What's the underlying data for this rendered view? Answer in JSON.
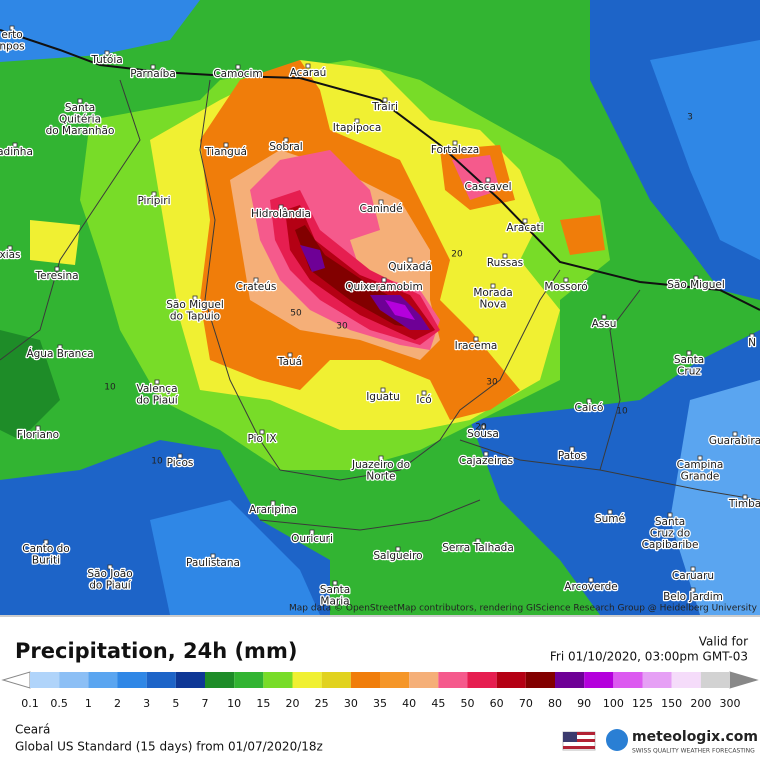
{
  "header": {
    "title": "Precipitation, 24h (mm)",
    "valid_label": "Valid for",
    "valid_time": "Fri 01/10/2020, 03:00pm GMT-03"
  },
  "map": {
    "cities": [
      [
        "erto",
        "npos"
      ],
      [
        "Tutóia"
      ],
      [
        "Parnaíba"
      ],
      [
        "Camocim"
      ],
      [
        "Acaraú"
      ],
      [
        "Santa",
        "Quitéria",
        "do Maranhão"
      ],
      [
        "adinha"
      ],
      [
        "Trairi"
      ],
      [
        "Itapipoca"
      ],
      [
        "Fortaleza"
      ],
      [
        "Tianguá"
      ],
      [
        "Sobral"
      ],
      [
        "Cascavel"
      ],
      [
        "Piripiri"
      ],
      [
        "Hidrolândia"
      ],
      [
        "Canindé"
      ],
      [
        "Aracati"
      ],
      [
        "xias"
      ],
      [
        "Teresina"
      ],
      [
        "Quixadá"
      ],
      [
        "Russas"
      ],
      [
        "Crateús"
      ],
      [
        "Quixeramobim"
      ],
      [
        "Mossoró"
      ],
      [
        "São Miguel"
      ],
      [
        "São Miguel",
        "do Tapuio"
      ],
      [
        "Morada",
        "Nova"
      ],
      [
        "Assu"
      ],
      [
        "Água Branca"
      ],
      [
        "Iracema"
      ],
      [
        "Tauá"
      ],
      [
        "Santa",
        "Cruz"
      ],
      [
        "Valença",
        "do Piauí"
      ],
      [
        "Iguatu"
      ],
      [
        "Icó"
      ],
      [
        "Caicó"
      ],
      [
        "Floriano"
      ],
      [
        "Pio IX"
      ],
      [
        "Sousa"
      ],
      [
        "Guarabira"
      ],
      [
        "Picos"
      ],
      [
        "Cajazeiras"
      ],
      [
        "Patos"
      ],
      [
        "Juazeiro do",
        "Norte"
      ],
      [
        "Campina",
        "Grande"
      ],
      [
        "Timba"
      ],
      [
        "Araripina"
      ],
      [
        "Sumé"
      ],
      [
        "Santa",
        "Cruz do",
        "Capibaribe"
      ],
      [
        "Ouricuri"
      ],
      [
        "Canto do",
        "Buriti"
      ],
      [
        "São João",
        "do Piauí"
      ],
      [
        "Paulistana"
      ],
      [
        "Salgueiro"
      ],
      [
        "Serra Talhada"
      ],
      [
        "Arcoverde"
      ],
      [
        "Caruaru"
      ],
      [
        "Belo Jardim"
      ],
      [
        "Santa",
        "Maria"
      ],
      [
        "N"
      ]
    ],
    "contour_labels": [
      "3",
      "20",
      "50",
      "30",
      "10",
      "30",
      "10",
      "10",
      "20"
    ],
    "attribution": "Map data © OpenStreetMap contributors, rendering GIScience Research Group @ Heidelberg University"
  },
  "legend": {
    "ticks": [
      0.1,
      0.5,
      1,
      2,
      3,
      5,
      7,
      10,
      15,
      20,
      25,
      30,
      35,
      40,
      45,
      50,
      60,
      70,
      80,
      90,
      100,
      125,
      150,
      200,
      300
    ],
    "colors": [
      "#b0d4fa",
      "#8cbff5",
      "#5aa5f0",
      "#2f87e6",
      "#1d64c8",
      "#0e3796",
      "#1e8c28",
      "#32b432",
      "#78dc28",
      "#f0f032",
      "#e1d21e",
      "#f07d0a",
      "#f59628",
      "#f5af78",
      "#f55a8c",
      "#e61e50",
      "#b40014",
      "#820000",
      "#6e0096",
      "#b400dc",
      "#dc5af0",
      "#e6a0f5",
      "#f5dcfa",
      "#d2d2d2"
    ]
  },
  "footer": {
    "region": "Ceará",
    "model": "Global US Standard (15 days)  from  01/07/2020/18z",
    "brand": "meteologix.com",
    "tagline": "SWISS QUALITY WEATHER FORECASTING"
  }
}
